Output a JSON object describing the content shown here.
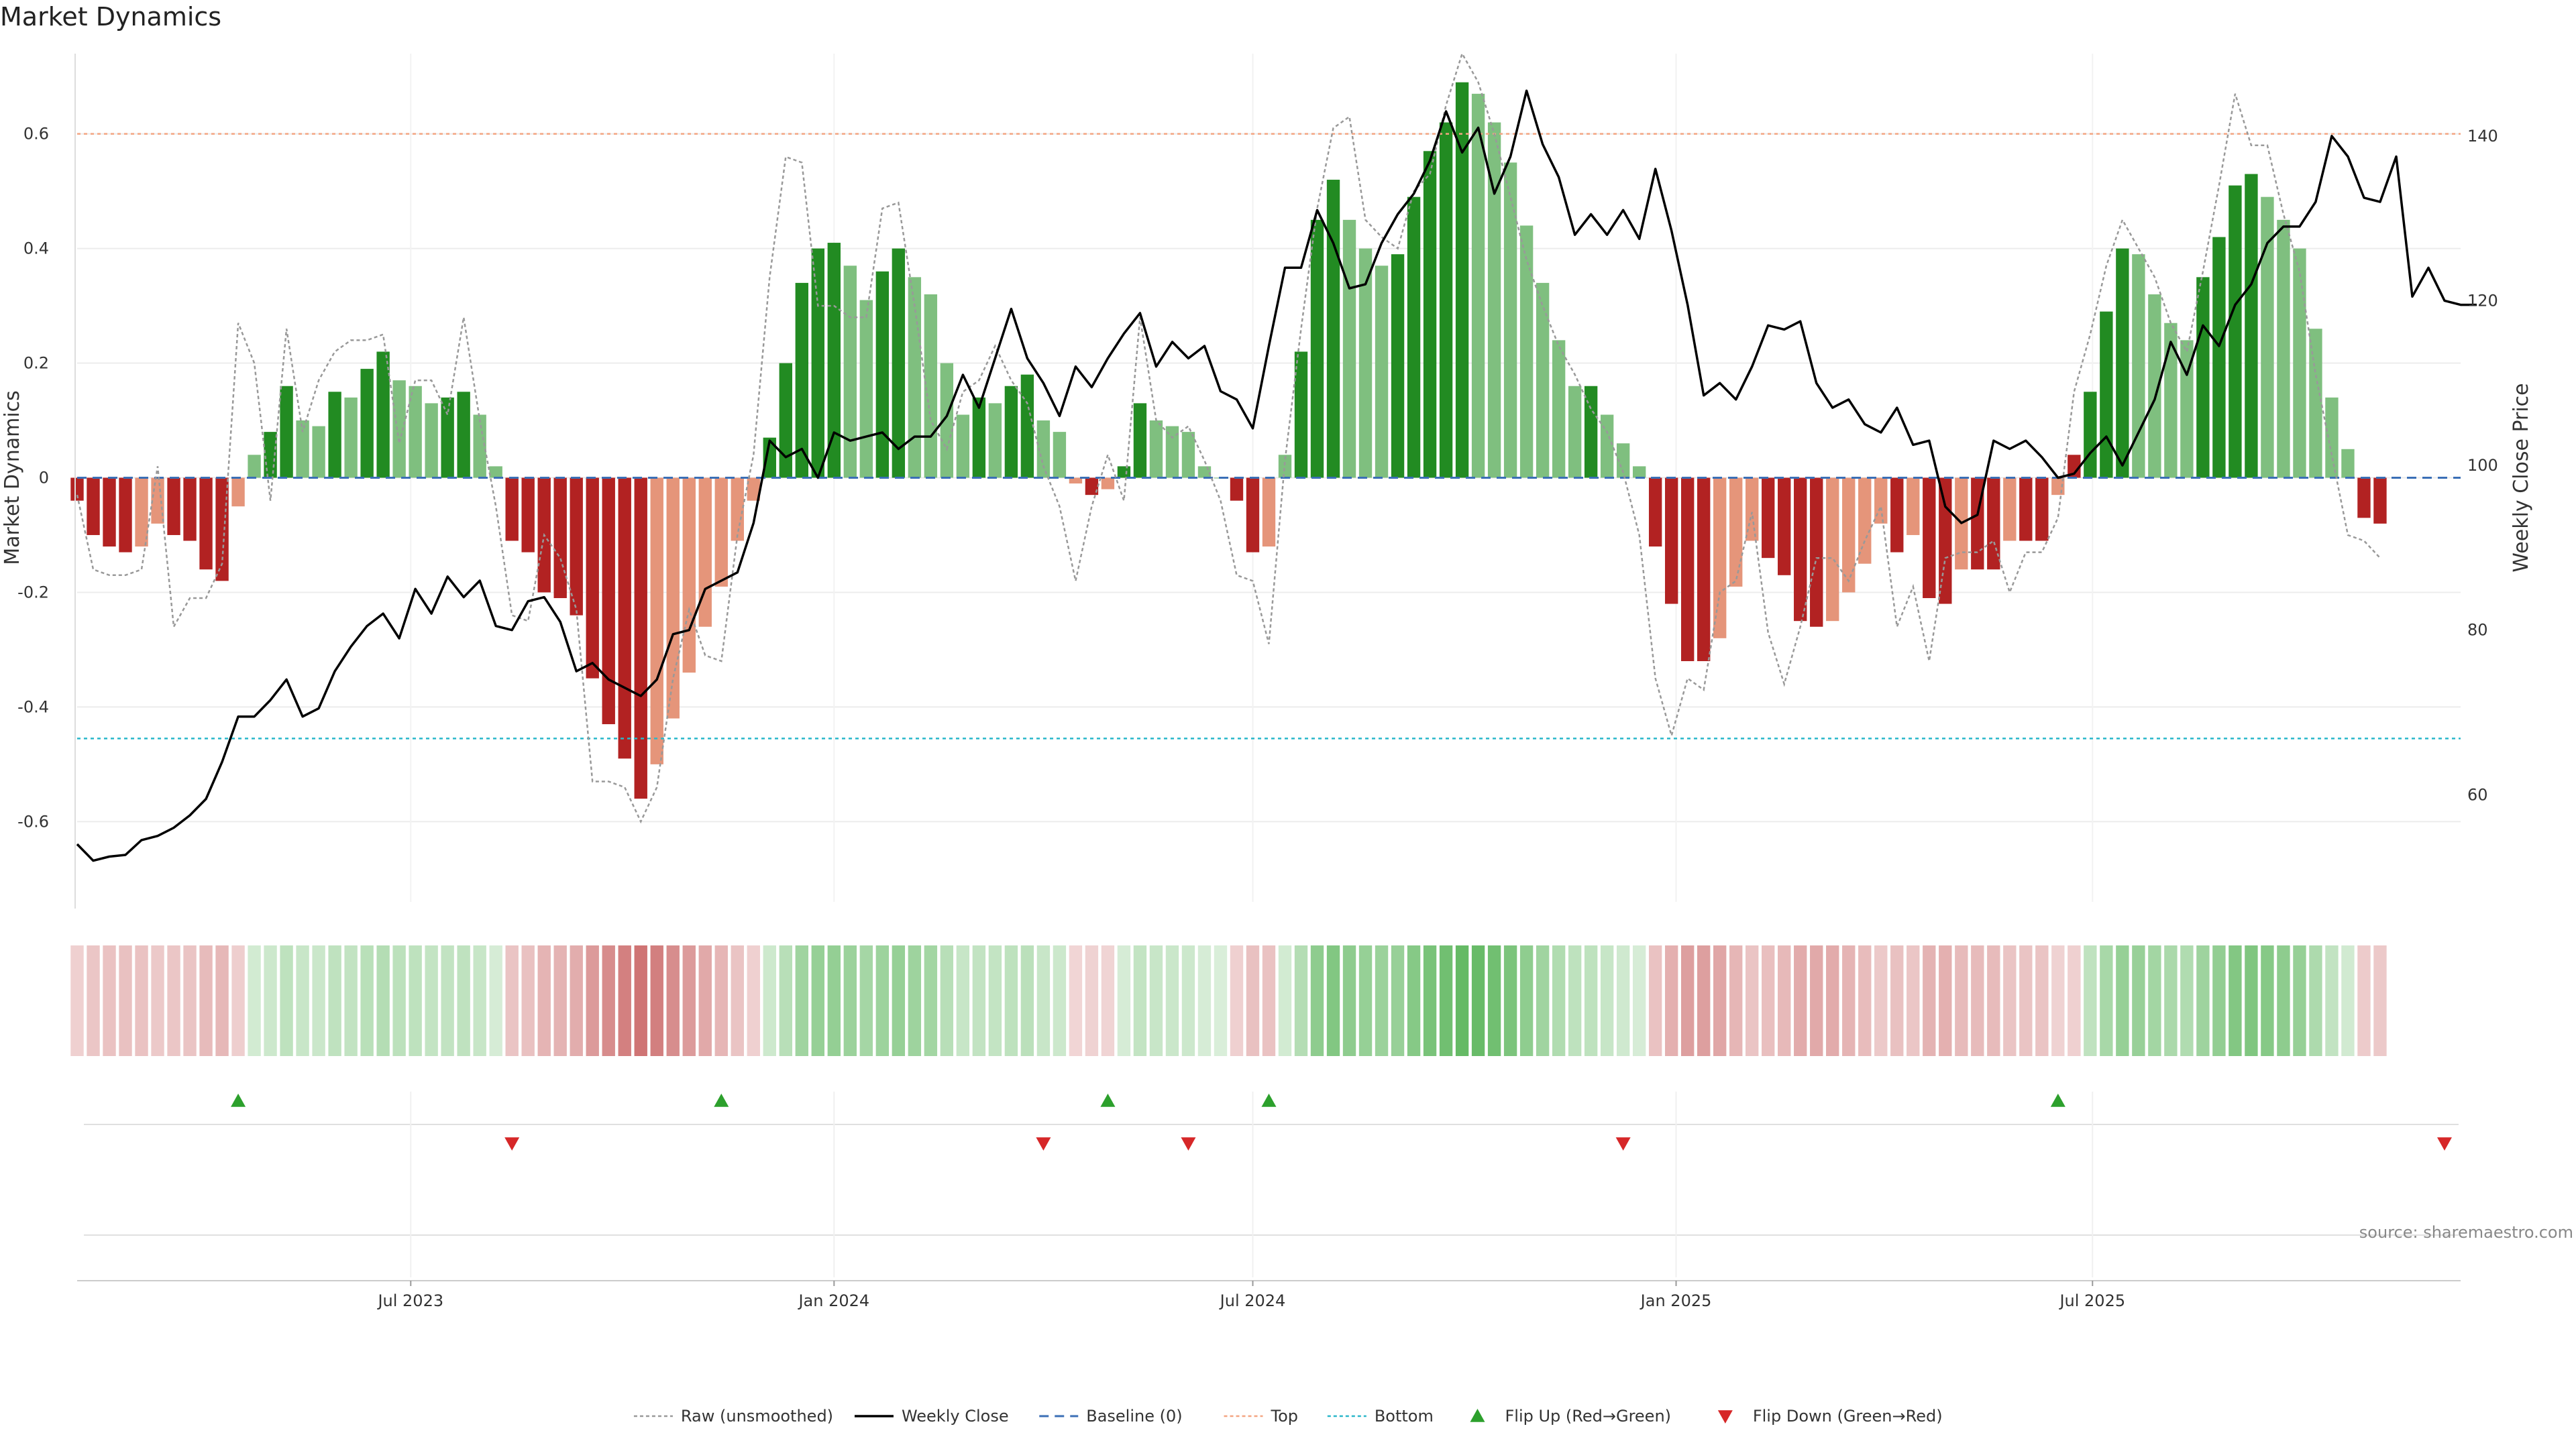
{
  "title": "Market Dynamics",
  "source": "source: sharemaestro.com",
  "colors": {
    "strong_green": "#228b22",
    "light_green": "#7fbf7f",
    "strong_red": "#b22222",
    "light_red": "#e5957a",
    "close_line": "#000000",
    "raw_line": "#999999",
    "baseline": "#3b6fb6",
    "top": "#f4a582",
    "bottom": "#2ab7ca",
    "flip_up": "#2ca02c",
    "flip_down": "#d62728"
  },
  "chart_data": {
    "type": "bar",
    "title": "Market Dynamics",
    "ylabel": "Market Dynamics",
    "ylabel_right": "Weekly Close Price",
    "ylim": [
      -0.74,
      0.74
    ],
    "ylim_right": [
      47,
      150
    ],
    "yticks": [
      -0.6,
      -0.4,
      -0.2,
      0,
      0.2,
      0.4,
      0.6
    ],
    "yticks_right": [
      60,
      80,
      100,
      120,
      140
    ],
    "x_start": "2023-02-06",
    "x_step_days": 7,
    "x_end": "2025-12-08",
    "xticks": [
      {
        "date": "2023-07-01",
        "label": "Jul 2023"
      },
      {
        "date": "2024-01-01",
        "label": "Jan 2024"
      },
      {
        "date": "2024-07-01",
        "label": "Jul 2024"
      },
      {
        "date": "2025-01-01",
        "label": "Jan 2025"
      },
      {
        "date": "2025-07-01",
        "label": "Jul 2025"
      }
    ],
    "top_level": 0.6,
    "bottom_level": -0.455,
    "grid": true,
    "legend_position": "bottom-center",
    "series": [
      {
        "name": "Market Dynamics",
        "kind": "bar",
        "values": [
          -0.04,
          -0.1,
          -0.12,
          -0.13,
          -0.12,
          -0.08,
          -0.1,
          -0.11,
          -0.16,
          -0.18,
          -0.05,
          0.04,
          0.08,
          0.16,
          0.1,
          0.09,
          0.15,
          0.14,
          0.19,
          0.22,
          0.17,
          0.16,
          0.13,
          0.14,
          0.15,
          0.11,
          0.02,
          -0.11,
          -0.13,
          -0.2,
          -0.21,
          -0.24,
          -0.35,
          -0.43,
          -0.49,
          -0.56,
          -0.5,
          -0.42,
          -0.34,
          -0.26,
          -0.19,
          -0.11,
          -0.04,
          0.07,
          0.2,
          0.34,
          0.4,
          0.41,
          0.37,
          0.31,
          0.36,
          0.4,
          0.35,
          0.32,
          0.2,
          0.11,
          0.14,
          0.13,
          0.16,
          0.18,
          0.1,
          0.08,
          -0.01,
          -0.03,
          -0.02,
          0.02,
          0.13,
          0.1,
          0.09,
          0.08,
          0.02,
          0,
          -0.04,
          -0.13,
          -0.12,
          0.04,
          0.22,
          0.45,
          0.52,
          0.45,
          0.4,
          0.37,
          0.39,
          0.49,
          0.57,
          0.62,
          0.69,
          0.67,
          0.62,
          0.55,
          0.44,
          0.34,
          0.24,
          0.16,
          0.16,
          0.11,
          0.06,
          0.02,
          -0.12,
          -0.22,
          -0.32,
          -0.32,
          -0.28,
          -0.19,
          -0.11,
          -0.14,
          -0.17,
          -0.25,
          -0.26,
          -0.25,
          -0.2,
          -0.15,
          -0.08,
          -0.13,
          -0.1,
          -0.21,
          -0.22,
          -0.16,
          -0.16,
          -0.16,
          -0.11,
          -0.11,
          -0.11,
          -0.03,
          0.04,
          0.15,
          0.29,
          0.4,
          0.39,
          0.32,
          0.27,
          0.24,
          0.35,
          0.42,
          0.51,
          0.53,
          0.49,
          0.45,
          0.4,
          0.26,
          0.14,
          0.05,
          -0.07,
          -0.08
        ],
        "phase": [
          "r",
          "r",
          "r",
          "r",
          "r",
          "r",
          "r",
          "r",
          "r",
          "r",
          "r",
          "g",
          "g",
          "g",
          "g",
          "g",
          "g",
          "g",
          "g",
          "g",
          "g",
          "g",
          "g",
          "g",
          "g",
          "g",
          "g",
          "r",
          "r",
          "r",
          "r",
          "r",
          "r",
          "r",
          "r",
          "r",
          "r",
          "r",
          "r",
          "r",
          "r",
          "r",
          "r",
          "g",
          "g",
          "g",
          "g",
          "g",
          "g",
          "g",
          "g",
          "g",
          "g",
          "g",
          "g",
          "g",
          "g",
          "g",
          "g",
          "g",
          "g",
          "g",
          "r",
          "r",
          "r",
          "g",
          "g",
          "g",
          "g",
          "g",
          "g",
          "g",
          "r",
          "r",
          "r",
          "g",
          "g",
          "g",
          "g",
          "g",
          "g",
          "g",
          "g",
          "g",
          "g",
          "g",
          "g",
          "g",
          "g",
          "g",
          "g",
          "g",
          "g",
          "g",
          "g",
          "g",
          "g",
          "g",
          "r",
          "r",
          "r",
          "r",
          "r",
          "r",
          "r",
          "r",
          "r",
          "r",
          "r",
          "r",
          "r",
          "r",
          "r",
          "r",
          "r",
          "r",
          "r",
          "r",
          "r",
          "r",
          "r",
          "r",
          "r",
          "r",
          "r",
          "g",
          "g",
          "g",
          "g",
          "g",
          "g",
          "g",
          "g",
          "g",
          "g",
          "g",
          "g",
          "g",
          "g",
          "g",
          "g",
          "g",
          "r",
          "r"
        ]
      },
      {
        "name": "Raw (unsmoothed)",
        "kind": "line",
        "values": [
          -0.03,
          -0.16,
          -0.17,
          -0.17,
          -0.16,
          0.02,
          -0.26,
          -0.21,
          -0.21,
          -0.15,
          0.27,
          0.2,
          -0.04,
          0.26,
          0.08,
          0.17,
          0.22,
          0.24,
          0.24,
          0.25,
          0.06,
          0.17,
          0.17,
          0.11,
          0.28,
          0.1,
          -0.05,
          -0.24,
          -0.25,
          -0.1,
          -0.14,
          -0.23,
          -0.53,
          -0.53,
          -0.54,
          -0.6,
          -0.54,
          -0.35,
          -0.23,
          -0.31,
          -0.32,
          -0.1,
          0.04,
          0.35,
          0.56,
          0.55,
          0.3,
          0.3,
          0.28,
          0.28,
          0.47,
          0.48,
          0.3,
          0.1,
          0.05,
          0.15,
          0.17,
          0.23,
          0.17,
          0.13,
          0.02,
          -0.05,
          -0.18,
          -0.05,
          0.04,
          -0.04,
          0.28,
          0.1,
          0.07,
          0.09,
          0.03,
          -0.04,
          -0.17,
          -0.18,
          -0.29,
          0.03,
          0.26,
          0.47,
          0.61,
          0.63,
          0.45,
          0.42,
          0.4,
          0.5,
          0.53,
          0.65,
          0.74,
          0.69,
          0.6,
          0.49,
          0.38,
          0.3,
          0.23,
          0.18,
          0.12,
          0.08,
          0.01,
          -0.1,
          -0.35,
          -0.45,
          -0.35,
          -0.37,
          -0.2,
          -0.18,
          -0.06,
          -0.27,
          -0.36,
          -0.26,
          -0.14,
          -0.14,
          -0.18,
          -0.11,
          -0.05,
          -0.26,
          -0.19,
          -0.32,
          -0.14,
          -0.13,
          -0.13,
          -0.11,
          -0.2,
          -0.13,
          -0.13,
          -0.07,
          0.15,
          0.25,
          0.37,
          0.45,
          0.4,
          0.35,
          0.27,
          0.22,
          0.36,
          0.51,
          0.67,
          0.58,
          0.58,
          0.46,
          0.36,
          0.18,
          0.04,
          -0.1,
          -0.11,
          -0.14
        ]
      },
      {
        "name": "Weekly Close",
        "kind": "line",
        "axis": "right",
        "values": [
          54,
          52,
          52.5,
          52.7,
          54.5,
          55,
          56,
          57.5,
          59.5,
          64,
          69.5,
          69.5,
          71.5,
          74,
          69.5,
          70.5,
          75,
          78,
          80.5,
          82,
          79,
          85,
          82,
          86.5,
          84,
          86,
          80.5,
          80,
          83.5,
          84,
          81,
          75,
          76,
          74,
          73,
          72,
          74,
          79.5,
          80,
          85,
          86,
          87,
          93,
          103,
          101,
          102,
          98.5,
          104,
          103,
          103.5,
          104,
          102,
          103.5,
          103.5,
          106,
          111,
          107,
          113,
          119,
          113,
          110,
          106,
          112,
          109.5,
          113,
          116,
          118.5,
          112,
          115,
          113,
          114.5,
          109,
          108,
          104.5,
          114.5,
          124,
          124,
          131,
          127,
          121.5,
          122,
          127,
          130.5,
          133,
          137,
          143,
          138,
          141,
          133,
          137.5,
          145.5,
          139,
          135,
          128,
          130.5,
          128,
          131,
          127.5,
          136,
          128.5,
          119.5,
          108.5,
          110,
          108,
          112,
          117,
          116.5,
          117.5,
          110,
          107,
          108,
          105,
          104,
          107,
          102.5,
          103,
          95,
          93,
          94,
          103,
          102,
          103,
          101,
          98.5,
          99,
          101.5,
          103.5,
          100,
          104,
          108,
          115,
          111,
          117,
          114.5,
          119.5,
          122,
          127,
          129,
          129,
          132,
          140,
          137.5,
          132.5,
          132,
          137.5,
          120.5,
          124,
          120,
          119.5,
          119.5
        ]
      }
    ],
    "strength_band": "Market Dynamics",
    "flip_up_dates": [
      "2023-04-17",
      "2023-11-13",
      "2024-04-29",
      "2024-07-08",
      "2025-06-16"
    ],
    "flip_down_dates": [
      "2023-08-14",
      "2024-04-01",
      "2024-06-03",
      "2024-12-09",
      "2025-12-01"
    ],
    "legend": [
      {
        "label": "Raw (unsmoothed)",
        "symbol": "dotted-line",
        "color_key": "raw_line"
      },
      {
        "label": "Weekly Close",
        "symbol": "solid-line",
        "color_key": "close_line"
      },
      {
        "label": "Baseline (0)",
        "symbol": "dashed-line",
        "color_key": "baseline"
      },
      {
        "label": "Top",
        "symbol": "dotted-line",
        "color_key": "top"
      },
      {
        "label": "Bottom",
        "symbol": "dotted-line",
        "color_key": "bottom"
      },
      {
        "label": "Flip Up (Red→Green)",
        "symbol": "triangle-up",
        "color_key": "flip_up"
      },
      {
        "label": "Flip Down (Green→Red)",
        "symbol": "triangle-down",
        "color_key": "flip_down"
      }
    ]
  }
}
